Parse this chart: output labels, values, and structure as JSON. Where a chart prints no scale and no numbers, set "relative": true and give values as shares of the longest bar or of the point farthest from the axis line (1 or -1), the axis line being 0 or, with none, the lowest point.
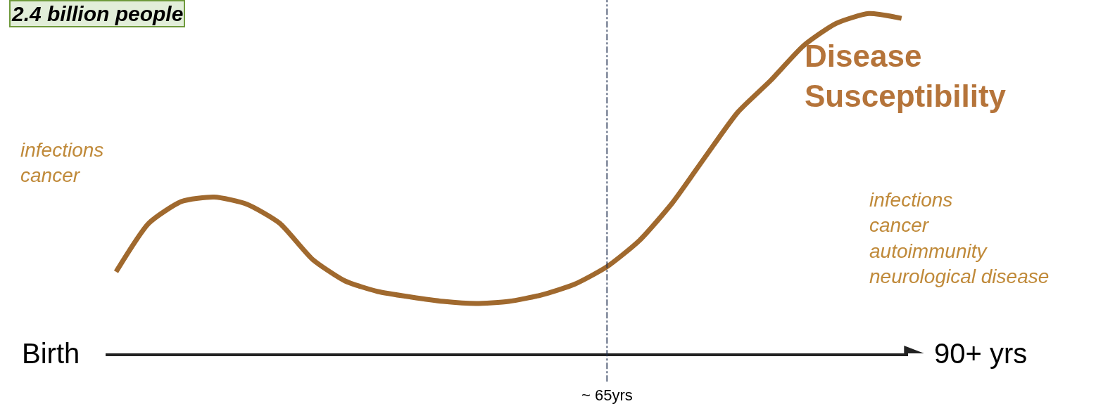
{
  "chart_data": {
    "type": "line",
    "relative": true,
    "categories": [
      null,
      null,
      null,
      null,
      null,
      null,
      null,
      null,
      null,
      null,
      null,
      null,
      null,
      null,
      null,
      null,
      null,
      null,
      null,
      null,
      null,
      null,
      null,
      null,
      null
    ],
    "series": [
      {
        "name": "Disease Susceptibility",
        "color": "#a0692e",
        "values": [
          0.24,
          0.383,
          0.447,
          0.46,
          0.439,
          0.383,
          0.277,
          0.213,
          0.182,
          0.166,
          0.153,
          0.147,
          0.153,
          0.172,
          0.203,
          0.255,
          0.333,
          0.443,
          0.578,
          0.71,
          0.803,
          0.905,
          0.971,
          1,
          0.986
        ]
      }
    ],
    "annotations": [
      "~ 65yrs",
      "2.4 billion people",
      "infections\ncancer",
      "infections\ncancer\nautoimmunity\nneurological disease",
      "Birth",
      "90+ yrs"
    ],
    "legend": false,
    "marker": "none",
    "line_style": "solid"
  }
}
